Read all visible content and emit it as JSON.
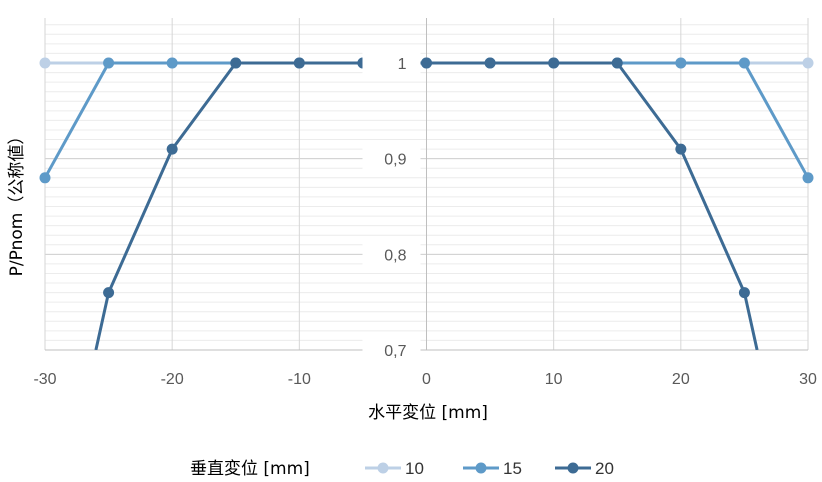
{
  "chart_data": {
    "type": "line",
    "xlabel": "水平変位 [mm]",
    "ylabel": "P/Pnom（公称値）",
    "xlim": [
      -30,
      30
    ],
    "ylim": [
      0.7,
      1.05
    ],
    "x_ticks": [
      "-30",
      "-20",
      "-10",
      "0",
      "10",
      "20",
      "30"
    ],
    "y_ticks": [
      "0,7",
      "0,8",
      "0,9",
      "1"
    ],
    "y_tick_values": [
      0.7,
      0.8,
      0.9,
      1.0
    ],
    "x_tick_values": [
      -30,
      -20,
      -10,
      0,
      10,
      20,
      30
    ],
    "grid": true,
    "legend_title": "垂直変位 [mm]",
    "legend_position": "bottom",
    "series": [
      {
        "name": "10",
        "color": "#bdd0e6",
        "x": [
          -30,
          -25,
          -20,
          -15,
          -10,
          -5,
          0,
          5,
          10,
          15,
          20,
          25,
          30
        ],
        "y": [
          1,
          1,
          1,
          1,
          1,
          1,
          1,
          1,
          1,
          1,
          1,
          1,
          1
        ]
      },
      {
        "name": "15",
        "color": "#5e9ac8",
        "x": [
          -30,
          -25,
          -20,
          -15,
          -10,
          -5,
          0,
          5,
          10,
          15,
          20,
          25,
          30
        ],
        "y": [
          0.88,
          1,
          1,
          1,
          1,
          1,
          1,
          1,
          1,
          1,
          1,
          1,
          0.88
        ]
      },
      {
        "name": "20",
        "color": "#3d6b94",
        "x": [
          -26,
          -25,
          -20,
          -15,
          -10,
          -5,
          0,
          5,
          10,
          15,
          20,
          25,
          26
        ],
        "y": [
          0.7,
          0.76,
          0.91,
          1,
          1,
          1,
          1,
          1,
          1,
          1,
          0.91,
          0.76,
          0.7
        ],
        "markers": [
          false,
          true,
          true,
          true,
          true,
          true,
          true,
          true,
          true,
          true,
          true,
          true,
          false
        ]
      }
    ]
  }
}
